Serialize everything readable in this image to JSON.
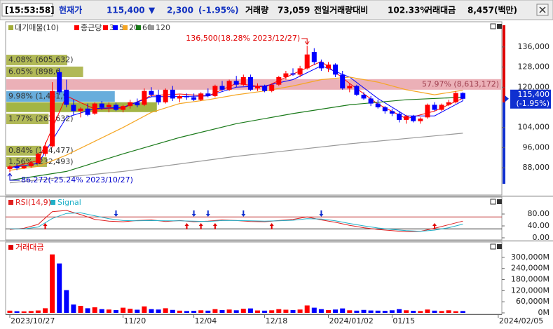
{
  "header": {
    "time": "[15:53:58]",
    "price_label": "현재가",
    "price": "115,400",
    "arrow": "▼",
    "change": "2,300",
    "change_pct": "(-1.95%)",
    "volume_label": "거래량",
    "volume": "73,059",
    "vol_ratio_label": "전일거래량대비",
    "vol_ratio": "102.33%",
    "amount_label": "거래대금",
    "amount": "8,457(백만)"
  },
  "chart_data": [
    {
      "type": "candlestick",
      "name": "종근당",
      "legend_profile": "대기매물(10)",
      "up_color": "#ff0000",
      "down_color": "#0000ff",
      "categories": [
        "2023/10/27",
        null,
        null,
        null,
        null,
        null,
        null,
        null,
        null,
        null,
        null,
        null,
        null,
        null,
        null,
        null,
        "11/20",
        null,
        null,
        null,
        null,
        null,
        null,
        null,
        null,
        null,
        "12/04",
        null,
        null,
        null,
        null,
        null,
        null,
        null,
        null,
        null,
        "12/18",
        null,
        null,
        null,
        null,
        null,
        null,
        null,
        null,
        "2024/01/02",
        null,
        null,
        null,
        null,
        null,
        null,
        null,
        null,
        "01/15",
        null,
        null,
        null,
        null,
        null,
        null,
        null,
        null,
        null,
        null,
        null,
        null,
        null,
        null,
        "2024/02/05"
      ],
      "open": [
        87500,
        88500,
        87800,
        88600,
        89800,
        93500,
        96500,
        126000,
        119000,
        113000,
        110500,
        111500,
        109500,
        113500,
        112000,
        113000,
        111000,
        112500,
        114000,
        113000,
        118500,
        117000,
        114000,
        119000,
        115500,
        116500,
        116000,
        115000,
        117500,
        116500,
        120500,
        119000,
        122500,
        121000,
        124000,
        119500,
        120500,
        118500,
        121000,
        124000,
        125500,
        125000,
        127500,
        134000,
        130000,
        127500,
        129000,
        125000,
        119500,
        120500,
        117000,
        115500,
        113500,
        112000,
        110500,
        109500,
        107000,
        108500,
        106500,
        108000,
        113000,
        111000,
        113000,
        114000,
        117700,
        null,
        null,
        null,
        null,
        null
      ],
      "high": [
        89000,
        89500,
        89000,
        90500,
        94000,
        98000,
        122000,
        127500,
        123000,
        115000,
        112000,
        113500,
        114000,
        114500,
        114000,
        113800,
        113000,
        115000,
        115500,
        119500,
        120000,
        119000,
        119500,
        120500,
        117000,
        117500,
        117500,
        118000,
        119500,
        121000,
        122500,
        123000,
        124500,
        125000,
        125000,
        121500,
        121000,
        121500,
        124500,
        126500,
        127500,
        128500,
        136500,
        135500,
        131000,
        130000,
        129500,
        126500,
        121500,
        121000,
        118000,
        116500,
        115000,
        112500,
        111500,
        110500,
        109000,
        109000,
        108000,
        113500,
        114000,
        113500,
        115000,
        118500,
        118000,
        null,
        null,
        null,
        null,
        null
      ],
      "low": [
        86272,
        87000,
        87500,
        88000,
        89500,
        92500,
        96000,
        117000,
        112000,
        109000,
        108000,
        108500,
        109000,
        111000,
        110000,
        110500,
        110000,
        111500,
        112000,
        112500,
        116000,
        113000,
        113500,
        114500,
        114000,
        115000,
        114500,
        114500,
        116000,
        116000,
        118500,
        118500,
        120000,
        120500,
        118500,
        118500,
        118000,
        118000,
        120500,
        123000,
        124500,
        124000,
        127000,
        129000,
        126500,
        126000,
        124000,
        119000,
        118000,
        116500,
        115000,
        112500,
        111500,
        109500,
        108500,
        106000,
        105500,
        106000,
        105500,
        107500,
        110500,
        110500,
        112500,
        113500,
        114500,
        null,
        null,
        null,
        null,
        null
      ],
      "close": [
        88500,
        87800,
        88600,
        89800,
        93500,
        96500,
        118500,
        118000,
        113000,
        110500,
        111500,
        109000,
        113500,
        111800,
        113000,
        111000,
        112500,
        114000,
        112800,
        118500,
        117000,
        114000,
        119000,
        115500,
        116500,
        116000,
        115000,
        117500,
        116500,
        120500,
        119000,
        122500,
        121000,
        124000,
        119000,
        120500,
        118500,
        121000,
        124000,
        125500,
        125000,
        127500,
        133000,
        130000,
        127500,
        129000,
        125000,
        119500,
        120500,
        117000,
        115500,
        113500,
        112000,
        110500,
        109500,
        107000,
        108500,
        106500,
        107500,
        113000,
        111000,
        113000,
        114000,
        117700,
        115400,
        null,
        null,
        null,
        null,
        null
      ],
      "ylim": [
        81600,
        144900
      ],
      "yticks": [
        {
          "value": 88000,
          "label": "88,000"
        },
        {
          "value": 96000,
          "label": "96,000"
        },
        {
          "value": 104000,
          "label": "104,000"
        },
        {
          "value": 120000,
          "label": "120,000"
        },
        {
          "value": 128000,
          "label": "128,000"
        },
        {
          "value": 136000,
          "label": "136,000"
        }
      ],
      "series": [
        {
          "name": "3",
          "color": "#ff0000",
          "x": [
            0,
            4,
            8,
            12,
            16,
            20,
            24,
            28,
            32,
            36,
            40,
            44,
            48,
            52,
            56,
            60,
            64
          ],
          "values": [
            88000,
            90800,
            116500,
            111300,
            111700,
            116700,
            117300,
            116500,
            121500,
            120000,
            125200,
            130200,
            121500,
            113300,
            107500,
            110500,
            115600
          ]
        },
        {
          "name": "5",
          "color": "#0000ff",
          "x": [
            0,
            4,
            8,
            12,
            16,
            20,
            24,
            28,
            32,
            36,
            40,
            44,
            48,
            52,
            56,
            60,
            64
          ],
          "values": [
            88000,
            89700,
            108000,
            111500,
            112000,
            116200,
            116300,
            116500,
            120000,
            120500,
            123000,
            128500,
            124000,
            115500,
            108600,
            108600,
            114600
          ]
        },
        {
          "name": "20",
          "color": "#f5a623",
          "x": [
            0,
            4,
            8,
            12,
            16,
            20,
            24,
            28,
            32,
            36,
            40,
            44,
            48,
            52,
            56,
            60,
            64
          ],
          "values": [
            87000,
            88500,
            93000,
            98500,
            104000,
            110000,
            113500,
            115000,
            117000,
            118500,
            120500,
            123000,
            124000,
            122000,
            119000,
            117000,
            118800
          ]
        },
        {
          "name": "60",
          "color": "#1a7a1a",
          "x": [
            0,
            8,
            16,
            24,
            32,
            40,
            48,
            56,
            64
          ],
          "values": [
            83000,
            86500,
            93500,
            100000,
            105500,
            109500,
            113000,
            115000,
            116000
          ]
        },
        {
          "name": "120",
          "color": "#999999",
          "x": [
            0,
            16,
            32,
            48,
            64
          ],
          "values": [
            82000,
            86500,
            92500,
            97500,
            101700
          ]
        }
      ],
      "profile": [
        {
          "pct": 4.08,
          "label": "4.08% (605,632)",
          "lo": 128700,
          "hi": 132900,
          "color": "#a3ad3a"
        },
        {
          "pct": 6.05,
          "label": "6.05% (898,6",
          "lo": 124000,
          "hi": 128200,
          "color": "#a3ad3a"
        },
        {
          "pct": 57.97,
          "label": "57.97% (8,613,172)",
          "lo": 119000,
          "hi": 123200,
          "color": "#e8a2aa"
        },
        {
          "pct": 9.98,
          "label": "9.98% (1,481,9",
          "lo": 114200,
          "hi": 118400,
          "color": "#4d9fd6"
        },
        {
          "pct": 15.2,
          "lo": 110100,
          "hi": 114000,
          "color": "#93a824"
        },
        {
          "pct": 1.77,
          "label": "1.77% (263,632)",
          "lo": 105300,
          "hi": 109500,
          "color": "#a3ad3a"
        },
        {
          "pct": 0.84,
          "label": "0.84% (124,477)",
          "lo": 92800,
          "hi": 96700,
          "color": "#a3ad3a"
        },
        {
          "pct": 1.56,
          "label": "1.56% (232,493)",
          "lo": 88300,
          "hi": 92200,
          "color": "#a3ad3a"
        }
      ],
      "annotations": [
        {
          "label": "136,500(18.28% 2023/12/27)",
          "x": 42,
          "value": 136500,
          "color": "#e00000"
        },
        {
          "label": "86,272(-25.24% 2023/10/27)",
          "x": 0,
          "value": 86272,
          "color": "#0000cc"
        }
      ],
      "current_price": {
        "value": 115400,
        "label": "115,400",
        "change_label": "(-1.95%)"
      }
    },
    {
      "type": "line",
      "ylim": [
        0,
        132
      ],
      "yticks": [
        {
          "value": 0,
          "label": "0.00"
        },
        {
          "value": 40,
          "label": "40.00"
        },
        {
          "value": 80,
          "label": "80.00"
        }
      ],
      "levels": [
        70,
        30
      ],
      "series": [
        {
          "name": "RSI(14,9)",
          "color": "#e02020",
          "x": [
            0,
            2,
            4,
            6,
            8,
            10,
            12,
            14,
            16,
            18,
            20,
            22,
            24,
            26,
            28,
            30,
            32,
            34,
            36,
            38,
            40,
            42,
            44,
            46,
            48,
            50,
            52,
            54,
            56,
            58,
            60,
            62,
            64
          ],
          "values": [
            28,
            32,
            45,
            88,
            92,
            78,
            62,
            56,
            54,
            58,
            60,
            55,
            58,
            54,
            56,
            60,
            58,
            55,
            54,
            58,
            62,
            70,
            60,
            52,
            42,
            34,
            28,
            24,
            20,
            22,
            32,
            44,
            56
          ]
        },
        {
          "name": "Signal",
          "color": "#20b0c8",
          "x": [
            0,
            2,
            4,
            6,
            8,
            10,
            12,
            14,
            16,
            18,
            20,
            22,
            24,
            26,
            28,
            30,
            32,
            34,
            36,
            38,
            40,
            42,
            44,
            46,
            48,
            50,
            52,
            54,
            56,
            58,
            60,
            62,
            64
          ],
          "values": [
            30,
            30,
            36,
            65,
            82,
            84,
            74,
            64,
            58,
            57,
            58,
            57,
            57,
            56,
            55,
            58,
            58,
            57,
            56,
            57,
            59,
            64,
            63,
            57,
            48,
            40,
            33,
            28,
            24,
            22,
            26,
            34,
            46
          ]
        }
      ],
      "buy_signals": [
        5,
        25,
        27,
        29,
        37,
        60
      ],
      "sell_signals": [
        15,
        26,
        28,
        33,
        44
      ]
    },
    {
      "type": "bar",
      "name": "거래대금",
      "ylim": [
        0,
        364000
      ],
      "yticks": [
        {
          "value": 0,
          "label": "0M"
        },
        {
          "value": 60000,
          "label": "60,000M"
        },
        {
          "value": 120000,
          "label": "120,000M"
        },
        {
          "value": 180000,
          "label": "180,000M"
        },
        {
          "value": 240000,
          "label": "240,000M"
        },
        {
          "value": 300000,
          "label": "300,000M"
        }
      ],
      "values": [
        12000,
        9000,
        8000,
        10000,
        13000,
        25000,
        316000,
        267000,
        123000,
        45000,
        38000,
        25000,
        30000,
        20000,
        18000,
        15000,
        28000,
        22000,
        17000,
        35000,
        20000,
        18000,
        25000,
        16000,
        12000,
        10000,
        11000,
        14000,
        12000,
        20000,
        15000,
        18000,
        14000,
        22000,
        24000,
        13000,
        12000,
        14000,
        20000,
        17000,
        15000,
        18000,
        40000,
        28000,
        20000,
        15000,
        18000,
        24000,
        14000,
        12000,
        16000,
        13000,
        12000,
        11000,
        14000,
        20000,
        14000,
        11000,
        10000,
        18000,
        12000,
        10000,
        14000,
        9000,
        10000,
        null,
        null,
        null,
        null,
        null
      ]
    }
  ]
}
